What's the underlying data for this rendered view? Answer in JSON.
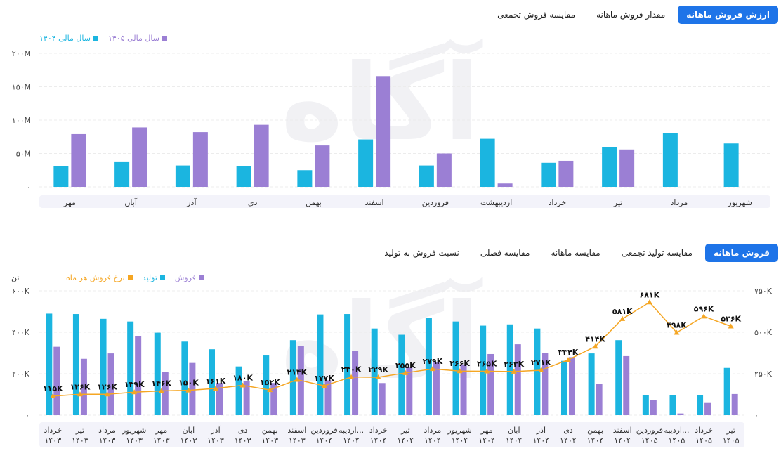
{
  "top_section": {
    "tabs": [
      {
        "label": "ارزش فروش ماهانه",
        "active": true
      },
      {
        "label": "مقدار فروش ماهانه",
        "active": false
      },
      {
        "label": "مقایسه فروش تجمعی",
        "active": false
      }
    ],
    "legend": [
      {
        "label": "سال مالی ۱۴۰۵",
        "color": "#9b7fd4"
      },
      {
        "label": "سال مالی ۱۴۰۴",
        "color": "#1bb5e0"
      }
    ]
  },
  "bottom_section": {
    "tabs": [
      {
        "label": "فروش ماهانه",
        "active": true
      },
      {
        "label": "مقایسه تولید تجمعی",
        "active": false
      },
      {
        "label": "مقایسه ماهانه",
        "active": false
      },
      {
        "label": "مقایسه فصلی",
        "active": false
      },
      {
        "label": "نسبت فروش به تولید",
        "active": false
      }
    ],
    "legend": [
      {
        "label": "فروش",
        "color": "#9b7fd4"
      },
      {
        "label": "تولید",
        "color": "#1bb5e0"
      },
      {
        "label": "نرخ فروش هر ماه",
        "color": "#f5a623"
      }
    ],
    "left_unit": "تن"
  },
  "chart_data": [
    {
      "type": "bar",
      "title": "",
      "categories": [
        "شهریور",
        "مرداد",
        "تیر",
        "خرداد",
        "اردیبهشت",
        "فروردین",
        "اسفند",
        "بهمن",
        "دی",
        "آذر",
        "آبان",
        "مهر"
      ],
      "series": [
        {
          "name": "سال مالی ۱۴۰۴",
          "color": "#1bb5e0",
          "values": [
            65,
            80,
            60,
            36,
            72,
            32,
            71,
            25,
            31,
            32,
            38,
            31
          ]
        },
        {
          "name": "سال مالی ۱۴۰۵",
          "color": "#9b7fd4",
          "values": [
            null,
            null,
            56,
            39,
            5,
            50,
            166,
            62,
            93,
            82,
            89,
            79
          ]
        }
      ],
      "yticks": [
        "۰",
        "۵۰M",
        "۱۰۰M",
        "۱۵۰M",
        "۲۰۰M"
      ],
      "ylim": [
        0,
        200
      ],
      "grid": true,
      "legend_position": "top-left"
    },
    {
      "type": "bar",
      "title": "",
      "categories": [
        {
          "month": "خرداد",
          "year": "۱۴۰۳"
        },
        {
          "month": "تیر",
          "year": "۱۴۰۳"
        },
        {
          "month": "مرداد",
          "year": "۱۴۰۳"
        },
        {
          "month": "شهریور",
          "year": "۱۴۰۳"
        },
        {
          "month": "مهر",
          "year": "۱۴۰۳"
        },
        {
          "month": "آبان",
          "year": "۱۴۰۳"
        },
        {
          "month": "آذر",
          "year": "۱۴۰۳"
        },
        {
          "month": "دی",
          "year": "۱۴۰۳"
        },
        {
          "month": "بهمن",
          "year": "۱۴۰۳"
        },
        {
          "month": "اسفند",
          "year": "۱۴۰۳"
        },
        {
          "month": "فروردین",
          "year": "۱۴۰۴"
        },
        {
          "month": "اردیبه...",
          "year": "۱۴۰۴"
        },
        {
          "month": "خرداد",
          "year": "۱۴۰۴"
        },
        {
          "month": "تیر",
          "year": "۱۴۰۴"
        },
        {
          "month": "مرداد",
          "year": "۱۴۰۴"
        },
        {
          "month": "شهریور",
          "year": "۱۴۰۴"
        },
        {
          "month": "مهر",
          "year": "۱۴۰۴"
        },
        {
          "month": "آبان",
          "year": "۱۴۰۴"
        },
        {
          "month": "آذر",
          "year": "۱۴۰۴"
        },
        {
          "month": "دی",
          "year": "۱۴۰۴"
        },
        {
          "month": "بهمن",
          "year": "۱۴۰۴"
        },
        {
          "month": "اسفند",
          "year": "۱۴۰۴"
        },
        {
          "month": "فروردین",
          "year": "۱۴۰۵"
        },
        {
          "month": "اردیبه...",
          "year": "۱۴۰۵"
        },
        {
          "month": "خرداد",
          "year": "۱۴۰۵"
        },
        {
          "month": "تیر",
          "year": "۱۴۰۵"
        }
      ],
      "series": [
        {
          "name": "تولید",
          "color": "#1bb5e0",
          "axis": "left",
          "values": [
            490,
            488,
            465,
            452,
            398,
            355,
            318,
            235,
            288,
            362,
            486,
            488,
            418,
            388,
            468,
            452,
            432,
            438,
            418,
            262,
            298,
            362,
            95,
            98,
            98,
            228
          ]
        },
        {
          "name": "فروش",
          "color": "#9b7fd4",
          "axis": "left",
          "values": [
            330,
            272,
            298,
            382,
            210,
            252,
            155,
            165,
            155,
            335,
            168,
            310,
            155,
            230,
            255,
            245,
            295,
            342,
            300,
            280,
            150,
            285,
            72,
            8,
            62,
            102
          ]
        },
        {
          "name": "نرخ فروش هر ماه",
          "color": "#f5a623",
          "axis": "right",
          "type": "line",
          "values": [
            115,
            126,
            126,
            139,
            146,
            150,
            161,
            180,
            152,
            214,
            177,
            230,
            229,
            255,
            279,
            266,
            265,
            263,
            271,
            334,
            414,
            581,
            681,
            498,
            596,
            536
          ],
          "labels": [
            "۱۱۵K",
            "۱۲۶K",
            "۱۲۶K",
            "۱۳۹K",
            "۱۴۶K",
            "۱۵۰K",
            "۱۶۱K",
            "۱۸۰K",
            "۱۵۲K",
            "۲۱۴K",
            "۱۷۷K",
            "۲۳۰K",
            "۲۲۹K",
            "۲۵۵K",
            "۲۷۹K",
            "۲۶۶K",
            "۲۶۵K",
            "۲۶۳K",
            "۲۷۱K",
            "۳۳۴K",
            "۴۱۴K",
            "۵۸۱K",
            "۶۸۱K",
            "۴۹۸K",
            "۵۹۶K",
            "۵۳۶K"
          ]
        }
      ],
      "left_ylim": [
        0,
        600
      ],
      "left_yticks": [
        "۰",
        "۲۰۰K",
        "۴۰۰K",
        "۶۰۰K"
      ],
      "right_ylim": [
        0,
        750
      ],
      "right_yticks": [
        "۰",
        "۲۵۰K",
        "۵۰۰K",
        "۷۵۰K"
      ],
      "grid": true,
      "legend_position": "top-left"
    }
  ]
}
